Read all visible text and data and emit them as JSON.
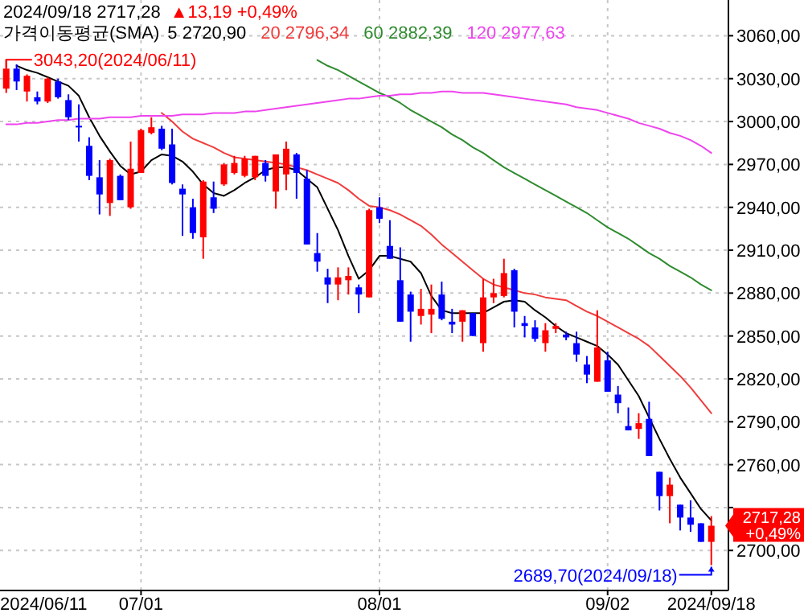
{
  "chart_data": {
    "type": "candlestick",
    "title": "2024/09/18  2717,28",
    "subtitle": "▲13,19  +0,49%",
    "legend_title": "가격이동평균(SMA)",
    "grid": true,
    "categories": [
      null,
      null,
      null,
      null,
      null,
      null,
      null,
      null,
      null,
      null,
      null,
      null,
      null,
      "07/01",
      null,
      null,
      null,
      null,
      null,
      null,
      null,
      null,
      null,
      null,
      null,
      null,
      null,
      null,
      null,
      null,
      null,
      null,
      null,
      null,
      null,
      null,
      "08/01",
      null,
      null,
      null,
      null,
      null,
      null,
      null,
      null,
      null,
      null,
      null,
      null,
      null,
      null,
      null,
      null,
      null,
      null,
      null,
      null,
      null,
      "09/02",
      null,
      null,
      null,
      null,
      null,
      null,
      null,
      null,
      null,
      "2024/09/18"
    ],
    "ohlc": [
      [
        3023,
        3043.2,
        3020,
        3037
      ],
      [
        3037,
        3040,
        3022,
        3028
      ],
      [
        3021,
        3033,
        3014,
        3032
      ],
      [
        3017,
        3021,
        3012,
        3014
      ],
      [
        3014,
        3031,
        3013,
        3030
      ],
      [
        3028,
        3030,
        3016,
        3017
      ],
      [
        3015,
        3019,
        3001,
        3003
      ],
      [
        2997,
        3012,
        2986,
        2996
      ],
      [
        2983,
        2989,
        2959,
        2962
      ],
      [
        2961,
        2973,
        2935,
        2949
      ],
      [
        2943,
        2974,
        2934,
        2973
      ],
      [
        2962,
        2963,
        2945,
        2945
      ],
      [
        2940,
        2986,
        2939,
        2967
      ],
      [
        2964,
        2995,
        2964,
        2994
      ],
      [
        2992,
        3003,
        2991,
        2996
      ],
      [
        2995,
        2997,
        2980,
        2981
      ],
      [
        2984,
        2995,
        2956,
        2957
      ],
      [
        2953,
        2956,
        2920,
        2949
      ],
      [
        2940,
        2946,
        2918,
        2922
      ],
      [
        2919,
        2959,
        2904,
        2958
      ],
      [
        2947,
        2958,
        2936,
        2939
      ],
      [
        2956,
        2971,
        2955,
        2970
      ],
      [
        2964,
        2976,
        2963,
        2971
      ],
      [
        2962,
        2976,
        2961,
        2974
      ],
      [
        2961,
        2976,
        2959,
        2976
      ],
      [
        2971,
        2973,
        2958,
        2962
      ],
      [
        2951,
        2977,
        2939,
        2977
      ],
      [
        2963,
        2986,
        2952,
        2981
      ],
      [
        2977,
        2978,
        2946,
        2964
      ],
      [
        2960,
        2966,
        2914,
        2914
      ],
      [
        2908,
        2922,
        2895,
        2902
      ],
      [
        2891,
        2897,
        2873,
        2886
      ],
      [
        2886,
        2898,
        2875,
        2891
      ],
      [
        2889,
        2898,
        2879,
        2892
      ],
      [
        2884,
        2886,
        2866,
        2879
      ],
      [
        2877,
        2939,
        2877,
        2938
      ],
      [
        2940,
        2947,
        2929,
        2932
      ],
      [
        2913,
        2931,
        2904,
        2904
      ],
      [
        2889,
        2912,
        2860,
        2860
      ],
      [
        2879,
        2881,
        2846,
        2867
      ],
      [
        2864,
        2883,
        2858,
        2869
      ],
      [
        2865,
        2886,
        2852,
        2869
      ],
      [
        2879,
        2888,
        2861,
        2862
      ],
      [
        2860,
        2869,
        2852,
        2858
      ],
      [
        2860,
        2868,
        2846,
        2868
      ],
      [
        2866,
        2866,
        2850,
        2850
      ],
      [
        2845,
        2890,
        2839,
        2877
      ],
      [
        2877,
        2890,
        2873,
        2880
      ],
      [
        2878,
        2904,
        2877,
        2894
      ],
      [
        2896,
        2897,
        2856,
        2867
      ],
      [
        2859,
        2864,
        2849,
        2857
      ],
      [
        2856,
        2861,
        2846,
        2848
      ],
      [
        2845,
        2859,
        2839,
        2854
      ],
      [
        2855,
        2859,
        2852,
        2857
      ],
      [
        2851,
        2853,
        2847,
        2849
      ],
      [
        2845,
        2853,
        2832,
        2837
      ],
      [
        2830,
        2836,
        2817,
        2823
      ],
      [
        2818,
        2868,
        2818,
        2842
      ],
      [
        2833,
        2839,
        2811,
        2811
      ],
      [
        2809,
        2815,
        2796,
        2803
      ],
      [
        2787,
        2800,
        2784,
        2784
      ],
      [
        2785,
        2796,
        2778,
        2789
      ],
      [
        2792,
        2804,
        2766,
        2766
      ],
      [
        2755,
        2755,
        2728,
        2738
      ],
      [
        2738,
        2751,
        2719,
        2746
      ],
      [
        2732,
        2732,
        2714,
        2723
      ],
      [
        2723,
        2735,
        2713,
        2718
      ],
      [
        2719,
        2719,
        2706,
        2706
      ],
      [
        2706,
        2724,
        2689.7,
        2717.28
      ]
    ],
    "series": [
      {
        "name": "5 2720,90",
        "type": "line",
        "color": "#000000",
        "values": [
          null,
          3039,
          3036,
          3034,
          3031,
          3028,
          3025,
          3018,
          3003,
          2990,
          2979,
          2969,
          2963,
          2965,
          2973,
          2977,
          2976,
          2972,
          2965,
          2956,
          2950,
          2948,
          2952,
          2957,
          2961,
          2966,
          2968,
          2968,
          2966,
          2960,
          2954,
          2939,
          2924,
          2906,
          2890,
          2896,
          2906,
          2906,
          2904,
          2902,
          2894,
          2878,
          2868,
          2866,
          2866,
          2866,
          2866,
          2870,
          2874,
          2875,
          2874,
          2868,
          2863,
          2857,
          2852,
          2849,
          2846,
          2843,
          2837,
          2830,
          2819,
          2808,
          2793,
          2778,
          2764,
          2751,
          2740,
          2729,
          2721
        ]
      },
      {
        "name": "20 2796,34",
        "type": "line",
        "color": "#f03c3c",
        "values": [
          null,
          null,
          null,
          null,
          null,
          null,
          null,
          null,
          null,
          null,
          null,
          null,
          null,
          null,
          null,
          3006,
          3000,
          2993,
          2988,
          2985,
          2982,
          2978,
          2975,
          2974,
          2973,
          2972,
          2971,
          2970,
          2968,
          2966,
          2963,
          2960,
          2957,
          2952,
          2946,
          2941,
          2940,
          2938,
          2935,
          2931,
          2927,
          2921,
          2914,
          2908,
          2902,
          2896,
          2890,
          2886,
          2884,
          2882,
          2880,
          2879,
          2877,
          2876,
          2875,
          2871,
          2867,
          2864,
          2860,
          2856,
          2852,
          2848,
          2843,
          2836,
          2829,
          2822,
          2814,
          2805,
          2796
        ]
      },
      {
        "name": "60 2882,39",
        "type": "line",
        "color": "#2e8b2e",
        "values": [
          null,
          null,
          null,
          null,
          null,
          null,
          null,
          null,
          null,
          null,
          null,
          null,
          null,
          null,
          null,
          null,
          null,
          null,
          null,
          null,
          null,
          null,
          null,
          null,
          null,
          null,
          null,
          null,
          null,
          null,
          3043,
          3039,
          3036,
          3032,
          3028,
          3024,
          3020,
          3017,
          3013,
          3008,
          3004,
          3000,
          2996,
          2991,
          2987,
          2982,
          2978,
          2973,
          2968,
          2964,
          2960,
          2956,
          2952,
          2948,
          2944,
          2940,
          2936,
          2931,
          2926,
          2922,
          2918,
          2913,
          2908,
          2904,
          2899,
          2895,
          2891,
          2886,
          2882
        ]
      },
      {
        "name": "120 2977,63",
        "type": "line",
        "color": "#ee44ee",
        "values": [
          2998,
          2998,
          2999,
          2999,
          3000,
          3001,
          3001,
          3002,
          3002,
          3002,
          3003,
          3003,
          3003,
          3004,
          3004,
          3004,
          3004,
          3005,
          3005,
          3005,
          3006,
          3006,
          3006,
          3007,
          3007,
          3008,
          3009,
          3010,
          3011,
          3012,
          3013,
          3014,
          3015,
          3016,
          3016,
          3017,
          3018,
          3018,
          3019,
          3019,
          3020,
          3020,
          3021,
          3021,
          3020,
          3020,
          3020,
          3019,
          3018,
          3017,
          3016,
          3015,
          3014,
          3013,
          3012,
          3010,
          3009,
          3008,
          3006,
          3004,
          3002,
          2999,
          2997,
          2995,
          2992,
          2990,
          2987,
          2983,
          2978
        ]
      }
    ],
    "ylim": [
      2672,
      3085
    ],
    "yticks": [
      {
        "value": 2700,
        "label": "2700,00"
      },
      {
        "value": 2730,
        "label": null
      },
      {
        "value": 2760,
        "label": "2760,00"
      },
      {
        "value": 2790,
        "label": "2790,00"
      },
      {
        "value": 2820,
        "label": "2820,00"
      },
      {
        "value": 2850,
        "label": "2850,00"
      },
      {
        "value": 2880,
        "label": "2880,00"
      },
      {
        "value": 2910,
        "label": "2910,00"
      },
      {
        "value": 2940,
        "label": "2940,00"
      },
      {
        "value": 2970,
        "label": "2970,00"
      },
      {
        "value": 3000,
        "label": "3000,00"
      },
      {
        "value": 3030,
        "label": "3030,00"
      },
      {
        "value": 3060,
        "label": "3060,00"
      }
    ],
    "annotations": [
      "2024/06/11",
      "3043,20(2024/06/11)",
      {
        "text": "2689,70(2024/09/18)",
        "x": "2024/09/18",
        "y": 2689.7
      },
      "2717,28 +0,49%"
    ]
  }
}
